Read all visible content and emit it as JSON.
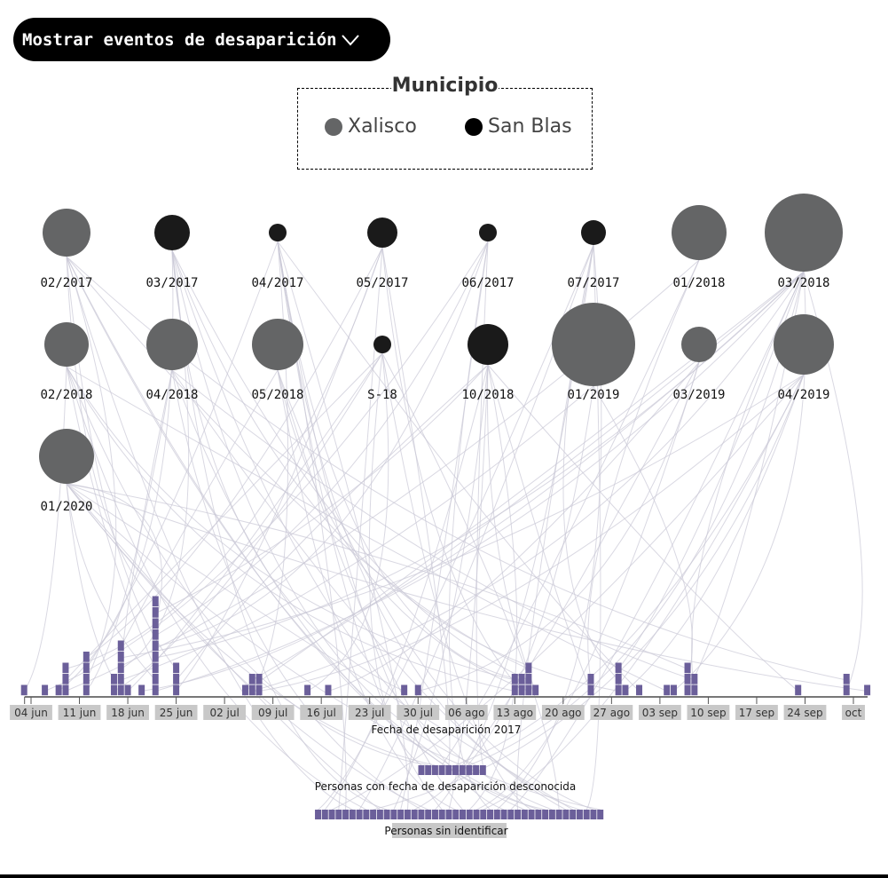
{
  "toggle": {
    "label": "Mostrar eventos de desaparición",
    "icon": "chevron-down-icon"
  },
  "legend": {
    "title": "Municipio",
    "items": [
      {
        "label": "Xalisco",
        "color": "#646566"
      },
      {
        "label": "San Blas",
        "color": "#000000"
      }
    ]
  },
  "chart_data": {
    "type": "scatter",
    "groups": [
      {
        "label": "02/2017",
        "municipio": "Xalisco"
      },
      {
        "label": "03/2017",
        "municipio": "San Blas"
      },
      {
        "label": "04/2017",
        "municipio": "San Blas"
      },
      {
        "label": "05/2017",
        "municipio": "San Blas"
      },
      {
        "label": "06/2017",
        "municipio": "San Blas"
      },
      {
        "label": "07/2017",
        "municipio": "San Blas"
      },
      {
        "label": "01/2018",
        "municipio": "Xalisco"
      },
      {
        "label": "03/2018",
        "municipio": "Xalisco"
      },
      {
        "label": "02/2018",
        "municipio": "Xalisco"
      },
      {
        "label": "04/2018",
        "municipio": "Xalisco"
      },
      {
        "label": "05/2018",
        "municipio": "Xalisco"
      },
      {
        "label": "S-18",
        "municipio": "San Blas"
      },
      {
        "label": "10/2018",
        "municipio": "San Blas"
      },
      {
        "label": "01/2019",
        "municipio": "Xalisco"
      },
      {
        "label": "03/2019",
        "municipio": "Xalisco"
      },
      {
        "label": "04/2019",
        "municipio": "Xalisco"
      },
      {
        "label": "01/2020",
        "municipio": "Xalisco"
      }
    ],
    "timeline": {
      "xlabel": "Fecha de desaparición 2017",
      "xlim": [
        "2017-06-03",
        "2017-10-03"
      ],
      "tick_labels": [
        "04 jun",
        "11 jun",
        "18 jun",
        "25 jun",
        "02 jul",
        "09 jul",
        "16 jul",
        "23 jul",
        "30 jul",
        "06 ago",
        "13 ago",
        "20 ago",
        "27 ago",
        "03 sep",
        "10 sep",
        "17 sep",
        "24 sep",
        "oct"
      ],
      "tick_dates": [
        "2017-06-04",
        "2017-06-11",
        "2017-06-18",
        "2017-06-25",
        "2017-07-02",
        "2017-07-09",
        "2017-07-16",
        "2017-07-23",
        "2017-07-30",
        "2017-08-06",
        "2017-08-13",
        "2017-08-20",
        "2017-08-27",
        "2017-09-03",
        "2017-09-10",
        "2017-09-17",
        "2017-09-24",
        "2017-10-01"
      ],
      "counts": [
        {
          "date": "2017-06-03",
          "n": 1
        },
        {
          "date": "2017-06-06",
          "n": 1
        },
        {
          "date": "2017-06-08",
          "n": 1
        },
        {
          "date": "2017-06-09",
          "n": 3
        },
        {
          "date": "2017-06-12",
          "n": 4
        },
        {
          "date": "2017-06-16",
          "n": 2
        },
        {
          "date": "2017-06-17",
          "n": 5
        },
        {
          "date": "2017-06-18",
          "n": 1
        },
        {
          "date": "2017-06-20",
          "n": 1
        },
        {
          "date": "2017-06-22",
          "n": 9
        },
        {
          "date": "2017-06-25",
          "n": 3
        },
        {
          "date": "2017-07-05",
          "n": 1
        },
        {
          "date": "2017-07-06",
          "n": 2
        },
        {
          "date": "2017-07-07",
          "n": 2
        },
        {
          "date": "2017-07-14",
          "n": 1
        },
        {
          "date": "2017-07-17",
          "n": 1
        },
        {
          "date": "2017-07-28",
          "n": 1
        },
        {
          "date": "2017-07-30",
          "n": 1
        },
        {
          "date": "2017-08-13",
          "n": 2
        },
        {
          "date": "2017-08-14",
          "n": 2
        },
        {
          "date": "2017-08-15",
          "n": 3
        },
        {
          "date": "2017-08-16",
          "n": 1
        },
        {
          "date": "2017-08-24",
          "n": 2
        },
        {
          "date": "2017-08-28",
          "n": 3
        },
        {
          "date": "2017-08-29",
          "n": 1
        },
        {
          "date": "2017-08-31",
          "n": 1
        },
        {
          "date": "2017-09-04",
          "n": 1
        },
        {
          "date": "2017-09-05",
          "n": 1
        },
        {
          "date": "2017-09-07",
          "n": 3
        },
        {
          "date": "2017-09-08",
          "n": 2
        },
        {
          "date": "2017-09-23",
          "n": 1
        },
        {
          "date": "2017-09-30",
          "n": 2
        },
        {
          "date": "2017-10-03",
          "n": 1
        }
      ],
      "color": "#6b5f9a"
    },
    "unknown_date": {
      "label": "Personas con fecha de desaparición desconocida",
      "n": 10
    },
    "unidentified": {
      "label": "Personas sin identificar",
      "n": 42
    }
  }
}
